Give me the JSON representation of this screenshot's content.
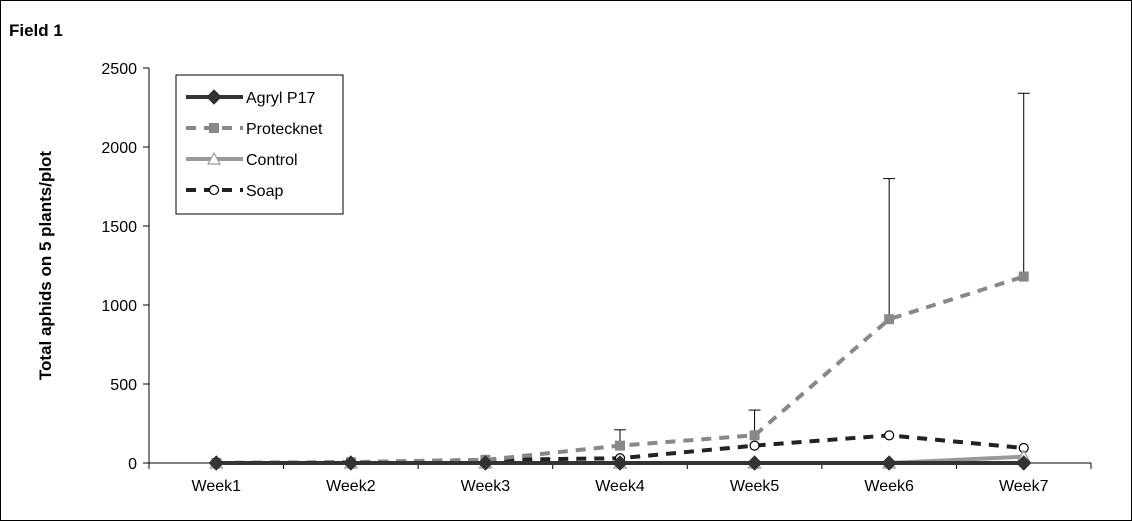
{
  "chart_data": {
    "type": "line",
    "title": "Field 1",
    "ylabel": "Total aphids on 5 plants/plot",
    "xlabel": "",
    "categories": [
      "Week1",
      "Week2",
      "Week3",
      "Week4",
      "Week5",
      "Week6",
      "Week7"
    ],
    "ylim": [
      0,
      2500
    ],
    "yticks": [
      0,
      500,
      1000,
      1500,
      2000,
      2500
    ],
    "grid": false,
    "legend_position": "top-left",
    "series": [
      {
        "name": "Agryl P17",
        "values": [
          0,
          0,
          0,
          0,
          0,
          0,
          0
        ],
        "color": "#333333",
        "line": "solid",
        "marker": "diamond"
      },
      {
        "name": "Protecknet",
        "values": [
          0,
          5,
          20,
          110,
          175,
          910,
          1180
        ],
        "error_plus": [
          0,
          0,
          0,
          100,
          160,
          890,
          1160
        ],
        "color": "#888888",
        "line": "dashed",
        "marker": "square"
      },
      {
        "name": "Control",
        "values": [
          0,
          0,
          0,
          0,
          0,
          0,
          40
        ],
        "color": "#999999",
        "line": "solid",
        "marker": "triangle"
      },
      {
        "name": "Soap",
        "values": [
          0,
          5,
          20,
          30,
          110,
          175,
          95
        ],
        "color": "#222222",
        "line": "dashed",
        "marker": "circle"
      }
    ]
  }
}
